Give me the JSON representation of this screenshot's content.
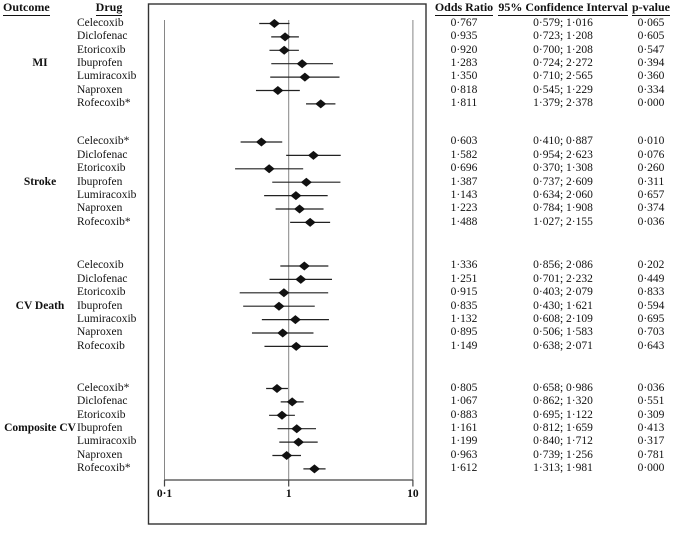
{
  "figure": {
    "headers": {
      "outcome": "Outcome",
      "drug": "Drug",
      "odds_ratio": "Odds Ratio",
      "confidence_interval": "95% Confidence Interval",
      "p_value": "p-value"
    }
  },
  "chart_data": {
    "type": "forest",
    "x_scale": "log10",
    "x_range": [
      0.1,
      10
    ],
    "x_ticks": [
      0.1,
      1,
      10
    ],
    "x_tick_labels": [
      "0·1",
      "1",
      "10"
    ],
    "reference_line": 1.0,
    "decimal_separator": "·",
    "value_columns": [
      "Odds Ratio",
      "95% Confidence Interval",
      "p-value"
    ],
    "groups": [
      {
        "outcome": "MI",
        "rows": [
          {
            "drug": "Celecoxib",
            "or": 0.767,
            "ci": [
              0.579,
              1.016
            ],
            "p": 0.065
          },
          {
            "drug": "Diclofenac",
            "or": 0.935,
            "ci": [
              0.723,
              1.208
            ],
            "p": 0.605
          },
          {
            "drug": "Etoricoxib",
            "or": 0.92,
            "ci": [
              0.7,
              1.208
            ],
            "p": 0.547
          },
          {
            "drug": "Ibuprofen",
            "or": 1.283,
            "ci": [
              0.724,
              2.272
            ],
            "p": 0.394
          },
          {
            "drug": "Lumiracoxib",
            "or": 1.35,
            "ci": [
              0.71,
              2.565
            ],
            "p": 0.36
          },
          {
            "drug": "Naproxen",
            "or": 0.818,
            "ci": [
              0.545,
              1.229
            ],
            "p": 0.334
          },
          {
            "drug": "Rofecoxib*",
            "or": 1.811,
            "ci": [
              1.379,
              2.378
            ],
            "p": 0.0
          }
        ]
      },
      {
        "outcome": "Stroke",
        "rows": [
          {
            "drug": "Celecoxib*",
            "or": 0.603,
            "ci": [
              0.41,
              0.887
            ],
            "p": 0.01
          },
          {
            "drug": "Diclofenac",
            "or": 1.582,
            "ci": [
              0.954,
              2.623
            ],
            "p": 0.076
          },
          {
            "drug": "Etoricoxib",
            "or": 0.696,
            "ci": [
              0.37,
              1.308
            ],
            "p": 0.26
          },
          {
            "drug": "Ibuprofen",
            "or": 1.387,
            "ci": [
              0.737,
              2.609
            ],
            "p": 0.311
          },
          {
            "drug": "Lumiracoxib",
            "or": 1.143,
            "ci": [
              0.634,
              2.06
            ],
            "p": 0.657
          },
          {
            "drug": "Naproxen",
            "or": 1.223,
            "ci": [
              0.784,
              1.908
            ],
            "p": 0.374
          },
          {
            "drug": "Rofecoxib*",
            "or": 1.488,
            "ci": [
              1.027,
              2.155
            ],
            "p": 0.036
          }
        ]
      },
      {
        "outcome": "CV Death",
        "rows": [
          {
            "drug": "Celecoxib",
            "or": 1.336,
            "ci": [
              0.856,
              2.086
            ],
            "p": 0.202
          },
          {
            "drug": "Diclofenac",
            "or": 1.251,
            "ci": [
              0.701,
              2.232
            ],
            "p": 0.449
          },
          {
            "drug": "Etoricoxib",
            "or": 0.915,
            "ci": [
              0.403,
              2.079
            ],
            "p": 0.833
          },
          {
            "drug": "Ibuprofen",
            "or": 0.835,
            "ci": [
              0.43,
              1.621
            ],
            "p": 0.594
          },
          {
            "drug": "Lumiracoxib",
            "or": 1.132,
            "ci": [
              0.608,
              2.109
            ],
            "p": 0.695
          },
          {
            "drug": "Naproxen",
            "or": 0.895,
            "ci": [
              0.506,
              1.583
            ],
            "p": 0.703
          },
          {
            "drug": "Rofecoxib",
            "or": 1.149,
            "ci": [
              0.638,
              2.071
            ],
            "p": 0.643
          }
        ]
      },
      {
        "outcome": "Composite CV",
        "rows": [
          {
            "drug": "Celecoxib*",
            "or": 0.805,
            "ci": [
              0.658,
              0.986
            ],
            "p": 0.036
          },
          {
            "drug": "Diclofenac",
            "or": 1.067,
            "ci": [
              0.862,
              1.32
            ],
            "p": 0.551
          },
          {
            "drug": "Etoricoxib",
            "or": 0.883,
            "ci": [
              0.695,
              1.122
            ],
            "p": 0.309
          },
          {
            "drug": "Ibuprofen",
            "or": 1.161,
            "ci": [
              0.812,
              1.659
            ],
            "p": 0.413
          },
          {
            "drug": "Lumiracoxib",
            "or": 1.199,
            "ci": [
              0.84,
              1.712
            ],
            "p": 0.317
          },
          {
            "drug": "Naproxen",
            "or": 0.963,
            "ci": [
              0.739,
              1.256
            ],
            "p": 0.781
          },
          {
            "drug": "Rofecoxib*",
            "or": 1.612,
            "ci": [
              1.313,
              1.981
            ],
            "p": 0.0
          }
        ]
      }
    ]
  }
}
